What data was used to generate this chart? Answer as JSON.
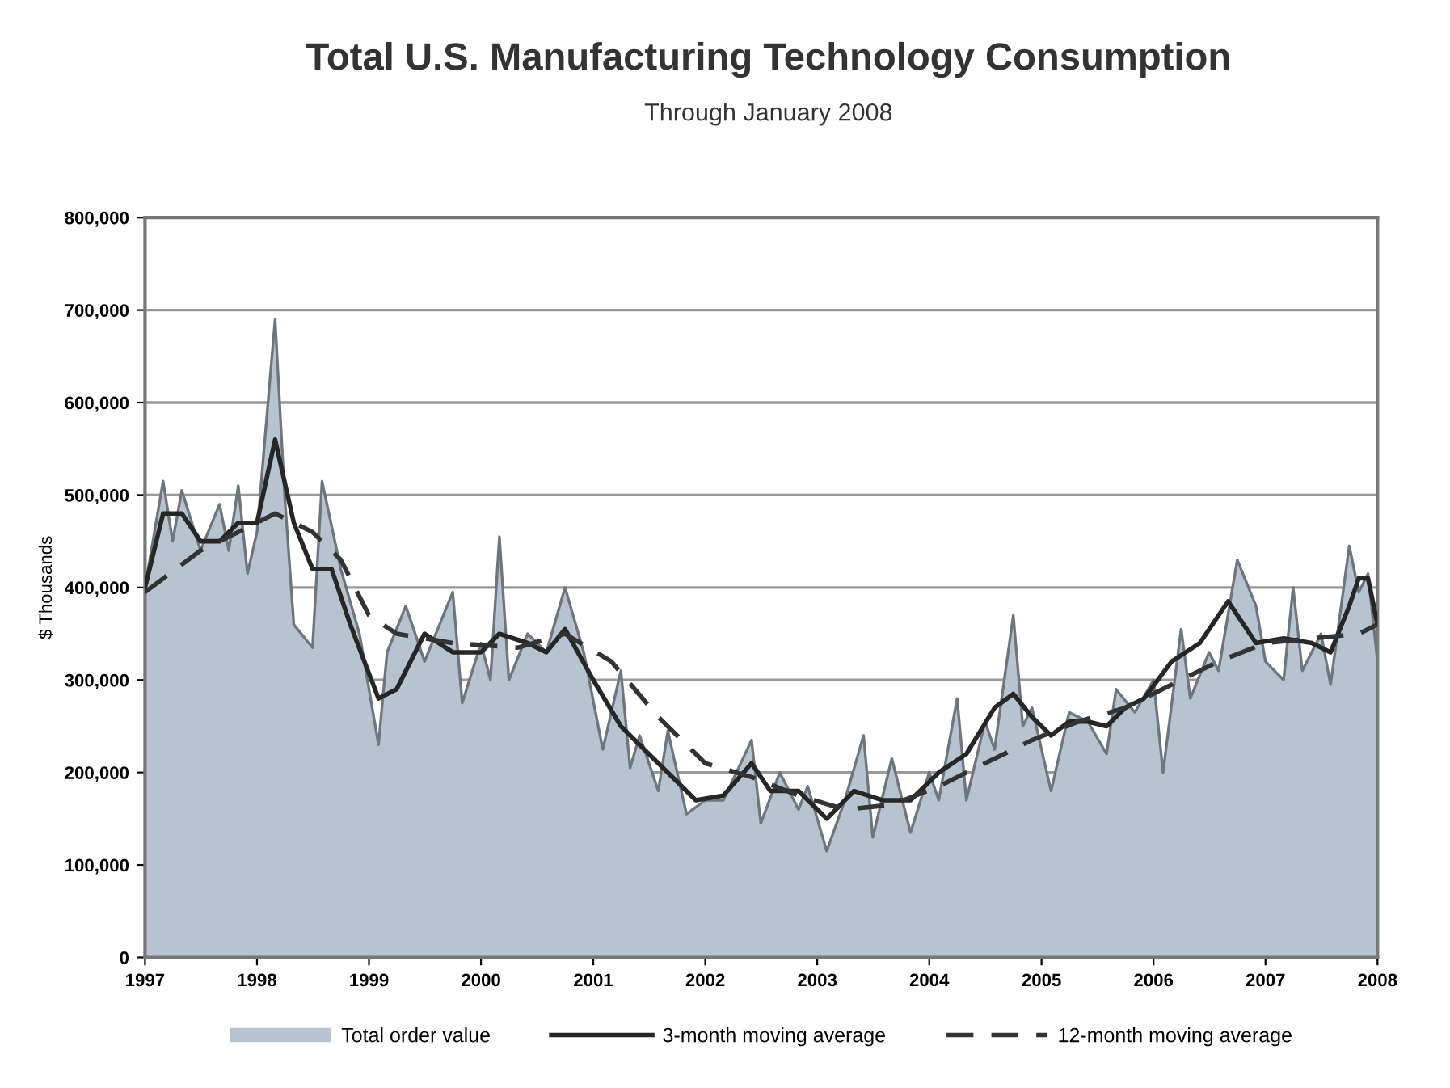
{
  "chart_data": {
    "type": "line",
    "title": "Total U.S. Manufacturing Technology Consumption",
    "subtitle": "Through January 2008",
    "ylabel": "$ Thousands",
    "xlim": [
      "1997-01",
      "2008-01"
    ],
    "xticks": [
      "1997",
      "1998",
      "1999",
      "2000",
      "2001",
      "2002",
      "2003",
      "2004",
      "2005",
      "2006",
      "2007",
      "2008"
    ],
    "ylim": [
      0,
      800000
    ],
    "yticks": [
      0,
      {
        "value": 100000,
        "label": "100,000"
      },
      {
        "value": 200000,
        "label": "200,000"
      },
      {
        "value": 300000,
        "label": "300,000"
      },
      {
        "value": 400000,
        "label": "400,000"
      },
      {
        "value": 500000,
        "label": "500,000"
      },
      {
        "value": 600000,
        "label": "600,000"
      },
      {
        "value": 700000,
        "label": "700,000"
      },
      {
        "value": 800000,
        "label": "800,000"
      }
    ],
    "grid": "y",
    "legend": "bottom",
    "series": [
      {
        "name": "Total order value",
        "type": "area",
        "color": "#b7c3cf",
        "x": [
          "1997-01",
          "1997-03",
          "1997-04",
          "1997-05",
          "1997-07",
          "1997-09",
          "1997-10",
          "1997-11",
          "1997-12",
          "1998-01",
          "1998-03",
          "1998-04",
          "1998-05",
          "1998-07",
          "1998-08",
          "1998-10",
          "1998-12",
          "1999-02",
          "1999-03",
          "1999-05",
          "1999-07",
          "1999-10",
          "1999-11",
          "2000-01",
          "2000-02",
          "2000-03",
          "2000-04",
          "2000-06",
          "2000-08",
          "2000-10",
          "2000-12",
          "2001-02",
          "2001-04",
          "2001-05",
          "2001-06",
          "2001-08",
          "2001-09",
          "2001-11",
          "2002-01",
          "2002-03",
          "2002-06",
          "2002-07",
          "2002-09",
          "2002-11",
          "2002-12",
          "2003-02",
          "2003-04",
          "2003-06",
          "2003-07",
          "2003-09",
          "2003-11",
          "2004-01",
          "2004-02",
          "2004-04",
          "2004-05",
          "2004-07",
          "2004-08",
          "2004-10",
          "2004-11",
          "2004-12",
          "2005-02",
          "2005-04",
          "2005-06",
          "2005-08",
          "2005-09",
          "2005-11",
          "2006-01",
          "2006-02",
          "2006-04",
          "2006-05",
          "2006-07",
          "2006-08",
          "2006-10",
          "2006-12",
          "2007-01",
          "2007-03",
          "2007-04",
          "2007-05",
          "2007-07",
          "2007-08",
          "2007-10",
          "2007-11",
          "2007-12",
          "2008-01"
        ],
        "values": [
          400000,
          515000,
          450000,
          505000,
          440000,
          490000,
          440000,
          510000,
          415000,
          460000,
          690000,
          500000,
          360000,
          335000,
          515000,
          420000,
          350000,
          230000,
          330000,
          380000,
          320000,
          395000,
          275000,
          340000,
          300000,
          455000,
          300000,
          350000,
          330000,
          400000,
          330000,
          225000,
          310000,
          205000,
          240000,
          180000,
          245000,
          155000,
          170000,
          170000,
          235000,
          145000,
          200000,
          160000,
          185000,
          115000,
          170000,
          240000,
          130000,
          215000,
          135000,
          200000,
          170000,
          280000,
          170000,
          255000,
          225000,
          370000,
          250000,
          270000,
          180000,
          265000,
          255000,
          220000,
          290000,
          265000,
          300000,
          200000,
          355000,
          280000,
          330000,
          310000,
          430000,
          380000,
          320000,
          300000,
          400000,
          310000,
          350000,
          295000,
          445000,
          395000,
          415000,
          320000
        ]
      },
      {
        "name": "3-month moving average",
        "color": "#262626",
        "line_style": "solid",
        "x": [
          "1997-01",
          "1997-03",
          "1997-05",
          "1997-07",
          "1997-09",
          "1997-11",
          "1998-01",
          "1998-03",
          "1998-05",
          "1998-07",
          "1998-09",
          "1998-11",
          "1999-02",
          "1999-04",
          "1999-07",
          "1999-10",
          "2000-01",
          "2000-03",
          "2000-06",
          "2000-08",
          "2000-10",
          "2001-01",
          "2001-04",
          "2001-07",
          "2001-10",
          "2001-12",
          "2002-03",
          "2002-06",
          "2002-08",
          "2002-11",
          "2003-02",
          "2003-05",
          "2003-08",
          "2003-11",
          "2004-02",
          "2004-05",
          "2004-08",
          "2004-10",
          "2004-12",
          "2005-02",
          "2005-04",
          "2005-06",
          "2005-08",
          "2005-10",
          "2005-12",
          "2006-03",
          "2006-06",
          "2006-09",
          "2006-12",
          "2007-03",
          "2007-06",
          "2007-08",
          "2007-10",
          "2007-11",
          "2007-12",
          "2008-01"
        ],
        "values": [
          400000,
          480000,
          480000,
          450000,
          450000,
          470000,
          470000,
          560000,
          470000,
          420000,
          420000,
          360000,
          280000,
          290000,
          350000,
          330000,
          330000,
          350000,
          340000,
          330000,
          355000,
          300000,
          250000,
          220000,
          190000,
          170000,
          175000,
          210000,
          180000,
          180000,
          150000,
          180000,
          170000,
          170000,
          200000,
          220000,
          270000,
          285000,
          260000,
          240000,
          255000,
          255000,
          250000,
          270000,
          280000,
          320000,
          340000,
          385000,
          340000,
          345000,
          340000,
          330000,
          380000,
          410000,
          410000,
          360000
        ]
      },
      {
        "name": "12-month moving average",
        "color": "#333333",
        "line_style": "dashed",
        "x": [
          "1997-01",
          "1997-07",
          "1997-11",
          "1998-03",
          "1998-07",
          "1998-10",
          "1999-01",
          "1999-04",
          "1999-10",
          "2000-05",
          "2000-10",
          "2001-03",
          "2001-08",
          "2002-01",
          "2002-06",
          "2002-11",
          "2003-04",
          "2003-09",
          "2004-02",
          "2004-07",
          "2004-12",
          "2005-05",
          "2005-10",
          "2006-03",
          "2006-08",
          "2007-01",
          "2007-06",
          "2007-11",
          "2008-01"
        ],
        "values": [
          395000,
          440000,
          460000,
          480000,
          460000,
          430000,
          370000,
          350000,
          340000,
          335000,
          350000,
          320000,
          260000,
          210000,
          195000,
          175000,
          160000,
          165000,
          185000,
          210000,
          235000,
          255000,
          270000,
          295000,
          320000,
          340000,
          345000,
          350000,
          360000
        ]
      }
    ]
  }
}
